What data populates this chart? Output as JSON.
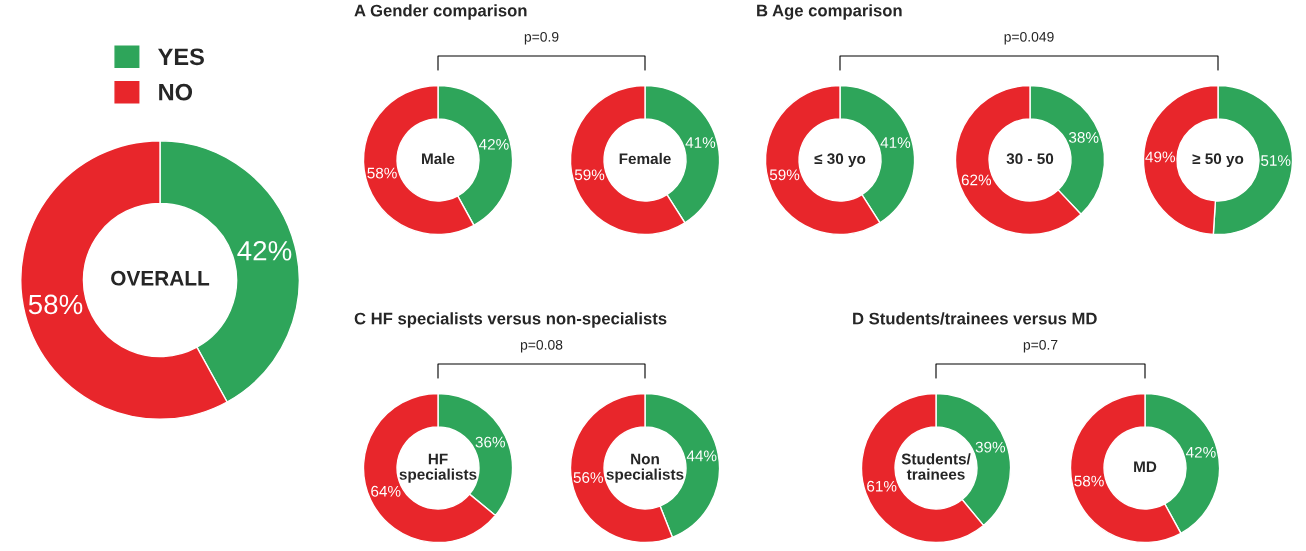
{
  "chart_data": [
    {
      "type": "donut",
      "categories": [
        "YES",
        "NO"
      ],
      "values": [
        42,
        58
      ],
      "colors": [
        "#2ea55a",
        "#e8262b"
      ],
      "value_labels": [
        "42%",
        "58%"
      ],
      "annotations": [
        "OVERALL"
      ],
      "legend": "top"
    },
    {
      "type": "donut",
      "title": "A Gender comparison",
      "categories": [
        null,
        null
      ],
      "values": [
        42,
        58
      ],
      "colors": [
        "#2ea55a",
        "#e8262b"
      ],
      "value_labels": [
        "42%",
        "58%"
      ],
      "annotations": [
        "Male",
        "p=0.9"
      ]
    },
    {
      "type": "donut",
      "categories": [
        null,
        null
      ],
      "values": [
        41,
        59
      ],
      "colors": [
        "#2ea55a",
        "#e8262b"
      ],
      "value_labels": [
        "41%",
        "59%"
      ],
      "annotations": [
        "Female"
      ]
    },
    {
      "type": "donut",
      "title": "B Age comparison",
      "categories": [
        null,
        null
      ],
      "values": [
        41,
        59
      ],
      "colors": [
        "#2ea55a",
        "#e8262b"
      ],
      "value_labels": [
        "41%",
        "59%"
      ],
      "annotations": [
        "≤ 30 yo",
        "p=0.049"
      ]
    },
    {
      "type": "donut",
      "categories": [
        null,
        null
      ],
      "values": [
        38,
        62
      ],
      "colors": [
        "#2ea55a",
        "#e8262b"
      ],
      "value_labels": [
        "38%",
        "62%"
      ],
      "annotations": [
        "30 - 50"
      ]
    },
    {
      "type": "donut",
      "categories": [
        null,
        null
      ],
      "values": [
        51,
        49
      ],
      "colors": [
        "#2ea55a",
        "#e8262b"
      ],
      "value_labels": [
        "51%",
        "49%"
      ],
      "annotations": [
        "≥ 50 yo"
      ]
    },
    {
      "type": "donut",
      "title": "C HF specialists versus non-specialists",
      "categories": [
        null,
        null
      ],
      "values": [
        36,
        64
      ],
      "colors": [
        "#2ea55a",
        "#e8262b"
      ],
      "value_labels": [
        "36%",
        "64%"
      ],
      "annotations": [
        "HF\nspecialists",
        "p=0.08"
      ]
    },
    {
      "type": "donut",
      "categories": [
        null,
        null
      ],
      "values": [
        44,
        56
      ],
      "colors": [
        "#2ea55a",
        "#e8262b"
      ],
      "value_labels": [
        "44%",
        "56%"
      ],
      "annotations": [
        "Non\nspecialists"
      ]
    },
    {
      "type": "donut",
      "title": "D Students/trainees versus MD",
      "categories": [
        null,
        null
      ],
      "values": [
        39,
        61
      ],
      "colors": [
        "#2ea55a",
        "#e8262b"
      ],
      "value_labels": [
        "39%",
        "61%"
      ],
      "annotations": [
        "Students/\ntrainees",
        "p=0.7"
      ]
    },
    {
      "type": "donut",
      "categories": [
        null,
        null
      ],
      "values": [
        42,
        58
      ],
      "colors": [
        "#2ea55a",
        "#e8262b"
      ],
      "value_labels": [
        "42%",
        "58%"
      ],
      "annotations": [
        "MD"
      ]
    }
  ]
}
